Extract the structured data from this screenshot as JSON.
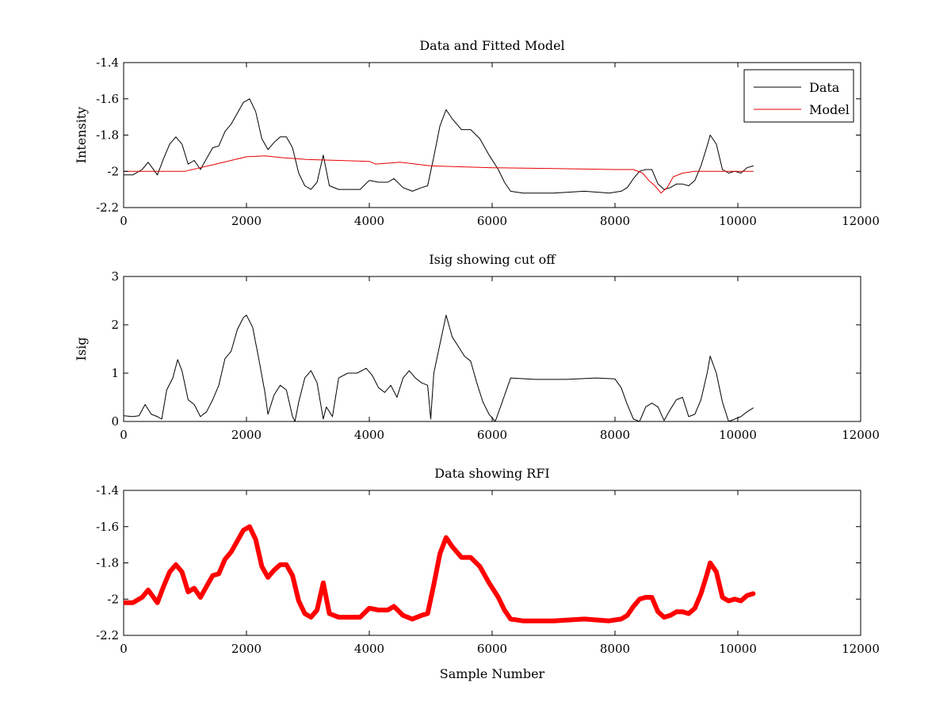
{
  "chart_data": [
    {
      "type": "line",
      "title": "Data and Fitted Model",
      "xlabel": "",
      "ylabel": "Intensity",
      "xlim": [
        0,
        12000
      ],
      "ylim": [
        -2.2,
        -1.4
      ],
      "xticks": [
        "0",
        "2000",
        "4000",
        "6000",
        "8000",
        "10000",
        "12000"
      ],
      "yticks": [
        "-2.2",
        "-2",
        "-1.8",
        "-1.6",
        "-1.4"
      ],
      "legend_position": "top-right",
      "series": [
        {
          "name": "Data",
          "color": "#000000",
          "x": [
            0,
            150,
            300,
            400,
            550,
            650,
            750,
            850,
            950,
            1050,
            1150,
            1250,
            1350,
            1450,
            1550,
            1650,
            1750,
            1850,
            1950,
            2050,
            2150,
            2250,
            2350,
            2450,
            2550,
            2650,
            2750,
            2850,
            2950,
            3050,
            3150,
            3250,
            3350,
            3500,
            3700,
            3850,
            4000,
            4150,
            4300,
            4400,
            4550,
            4700,
            4850,
            4950,
            5050,
            5150,
            5250,
            5350,
            5500,
            5650,
            5800,
            5950,
            6100,
            6200,
            6300,
            6500,
            7000,
            7500,
            7900,
            8100,
            8200,
            8300,
            8400,
            8500,
            8600,
            8700,
            8800,
            8900,
            9000,
            9100,
            9200,
            9300,
            9400,
            9500,
            9550,
            9650,
            9750,
            9850,
            9950,
            10050,
            10150,
            10250
          ],
          "y": [
            -2.02,
            -2.02,
            -1.99,
            -1.95,
            -2.02,
            -1.93,
            -1.85,
            -1.81,
            -1.85,
            -1.96,
            -1.94,
            -1.99,
            -1.93,
            -1.87,
            -1.86,
            -1.78,
            -1.74,
            -1.68,
            -1.62,
            -1.6,
            -1.67,
            -1.82,
            -1.88,
            -1.84,
            -1.81,
            -1.81,
            -1.87,
            -2.01,
            -2.08,
            -2.1,
            -2.06,
            -1.91,
            -2.08,
            -2.1,
            -2.1,
            -2.1,
            -2.05,
            -2.06,
            -2.06,
            -2.04,
            -2.09,
            -2.11,
            -2.09,
            -2.08,
            -1.92,
            -1.75,
            -1.66,
            -1.71,
            -1.77,
            -1.77,
            -1.82,
            -1.91,
            -1.99,
            -2.06,
            -2.11,
            -2.12,
            -2.12,
            -2.11,
            -2.12,
            -2.11,
            -2.09,
            -2.04,
            -2.0,
            -1.99,
            -1.99,
            -2.07,
            -2.1,
            -2.09,
            -2.07,
            -2.07,
            -2.08,
            -2.05,
            -1.97,
            -1.86,
            -1.8,
            -1.85,
            -1.99,
            -2.01,
            -2.0,
            -2.01,
            -1.98,
            -1.97
          ]
        },
        {
          "name": "Model",
          "color": "#e60000",
          "x": [
            0,
            500,
            1000,
            1500,
            2000,
            2300,
            2600,
            3000,
            3500,
            4000,
            4100,
            4300,
            4500,
            5000,
            6000,
            7000,
            8000,
            8300,
            8450,
            8550,
            8650,
            8750,
            8850,
            8950,
            9100,
            9300,
            9500,
            9800,
            10250
          ],
          "y": [
            -2.0,
            -2.0,
            -2.0,
            -1.96,
            -1.92,
            -1.915,
            -1.925,
            -1.935,
            -1.94,
            -1.945,
            -1.96,
            -1.955,
            -1.95,
            -1.97,
            -1.98,
            -1.985,
            -1.99,
            -1.99,
            -2.01,
            -2.05,
            -2.08,
            -2.12,
            -2.09,
            -2.03,
            -2.01,
            -2.0,
            -2.0,
            -2.0,
            -2.0
          ]
        }
      ]
    },
    {
      "type": "line",
      "title": "Isig showing cut off",
      "xlabel": "",
      "ylabel": "Isig",
      "xlim": [
        0,
        12000
      ],
      "ylim": [
        0,
        3
      ],
      "xticks": [
        "0",
        "2000",
        "4000",
        "6000",
        "8000",
        "10000",
        "12000"
      ],
      "yticks": [
        "0",
        "1",
        "2",
        "3"
      ],
      "series": [
        {
          "name": "",
          "color": "#000000",
          "x": [
            0,
            150,
            250,
            350,
            450,
            550,
            620,
            700,
            800,
            880,
            950,
            1050,
            1150,
            1250,
            1350,
            1450,
            1550,
            1650,
            1750,
            1850,
            1950,
            2000,
            2100,
            2200,
            2300,
            2350,
            2450,
            2550,
            2650,
            2750,
            2790,
            2850,
            2950,
            3050,
            3150,
            3250,
            3300,
            3400,
            3500,
            3650,
            3800,
            3950,
            4050,
            4150,
            4250,
            4350,
            4450,
            4550,
            4650,
            4750,
            4850,
            4950,
            5000,
            5050,
            5150,
            5250,
            5350,
            5450,
            5550,
            5650,
            5750,
            5850,
            5950,
            6050,
            6150,
            6300,
            6700,
            7200,
            7700,
            8000,
            8100,
            8200,
            8300,
            8400,
            8500,
            8600,
            8700,
            8800,
            8900,
            9000,
            9100,
            9200,
            9300,
            9400,
            9500,
            9550,
            9650,
            9750,
            9850,
            9950,
            10050,
            10150,
            10250
          ],
          "y": [
            0.12,
            0.1,
            0.12,
            0.35,
            0.15,
            0.1,
            0.05,
            0.65,
            0.9,
            1.28,
            1.05,
            0.45,
            0.35,
            0.1,
            0.2,
            0.45,
            0.75,
            1.3,
            1.45,
            1.9,
            2.15,
            2.2,
            1.95,
            1.3,
            0.6,
            0.15,
            0.55,
            0.75,
            0.65,
            0.1,
            0.0,
            0.4,
            0.9,
            1.05,
            0.8,
            0.05,
            0.3,
            0.1,
            0.9,
            1.0,
            1.0,
            1.1,
            0.95,
            0.7,
            0.6,
            0.75,
            0.5,
            0.9,
            1.05,
            0.9,
            0.8,
            0.75,
            0.05,
            1.0,
            1.6,
            2.2,
            1.75,
            1.55,
            1.35,
            1.25,
            0.8,
            0.4,
            0.15,
            0.0,
            0.35,
            0.9,
            0.87,
            0.87,
            0.9,
            0.88,
            0.7,
            0.35,
            0.05,
            0.0,
            0.3,
            0.38,
            0.3,
            0.02,
            0.25,
            0.45,
            0.5,
            0.1,
            0.15,
            0.45,
            1.0,
            1.35,
            1.0,
            0.4,
            0.0,
            0.05,
            0.1,
            0.2,
            0.28
          ]
        }
      ]
    },
    {
      "type": "line",
      "title": "Data showing RFI",
      "xlabel": "Sample Number",
      "ylabel": "",
      "xlim": [
        0,
        12000
      ],
      "ylim": [
        -2.2,
        -1.4
      ],
      "xticks": [
        "0",
        "2000",
        "4000",
        "6000",
        "8000",
        "10000",
        "12000"
      ],
      "yticks": [
        "-2.2",
        "-2",
        "-1.8",
        "-1.6",
        "-1.4"
      ],
      "series": [
        {
          "name": "",
          "color": "#ff0000",
          "x": [
            0,
            150,
            300,
            400,
            550,
            650,
            750,
            850,
            950,
            1050,
            1150,
            1250,
            1350,
            1450,
            1550,
            1650,
            1750,
            1850,
            1950,
            2050,
            2150,
            2250,
            2350,
            2450,
            2550,
            2650,
            2750,
            2850,
            2950,
            3050,
            3150,
            3250,
            3350,
            3500,
            3700,
            3850,
            4000,
            4150,
            4300,
            4400,
            4550,
            4700,
            4850,
            4950,
            5050,
            5150,
            5250,
            5350,
            5500,
            5650,
            5800,
            5950,
            6100,
            6200,
            6300,
            6500,
            7000,
            7500,
            7900,
            8100,
            8200,
            8300,
            8400,
            8500,
            8600,
            8700,
            8800,
            8900,
            9000,
            9100,
            9200,
            9300,
            9400,
            9500,
            9550,
            9650,
            9750,
            9850,
            9950,
            10050,
            10150,
            10250
          ],
          "y": [
            -2.02,
            -2.02,
            -1.99,
            -1.95,
            -2.02,
            -1.93,
            -1.85,
            -1.81,
            -1.85,
            -1.96,
            -1.94,
            -1.99,
            -1.93,
            -1.87,
            -1.86,
            -1.78,
            -1.74,
            -1.68,
            -1.62,
            -1.6,
            -1.67,
            -1.82,
            -1.88,
            -1.84,
            -1.81,
            -1.81,
            -1.87,
            -2.01,
            -2.08,
            -2.1,
            -2.06,
            -1.91,
            -2.08,
            -2.1,
            -2.1,
            -2.1,
            -2.05,
            -2.06,
            -2.06,
            -2.04,
            -2.09,
            -2.11,
            -2.09,
            -2.08,
            -1.92,
            -1.75,
            -1.66,
            -1.71,
            -1.77,
            -1.77,
            -1.82,
            -1.91,
            -1.99,
            -2.06,
            -2.11,
            -2.12,
            -2.12,
            -2.11,
            -2.12,
            -2.11,
            -2.09,
            -2.04,
            -2.0,
            -1.99,
            -1.99,
            -2.07,
            -2.1,
            -2.09,
            -2.07,
            -2.07,
            -2.08,
            -2.05,
            -1.97,
            -1.86,
            -1.8,
            -1.85,
            -1.99,
            -2.01,
            -2.0,
            -2.01,
            -1.98,
            -1.97
          ]
        }
      ]
    }
  ]
}
